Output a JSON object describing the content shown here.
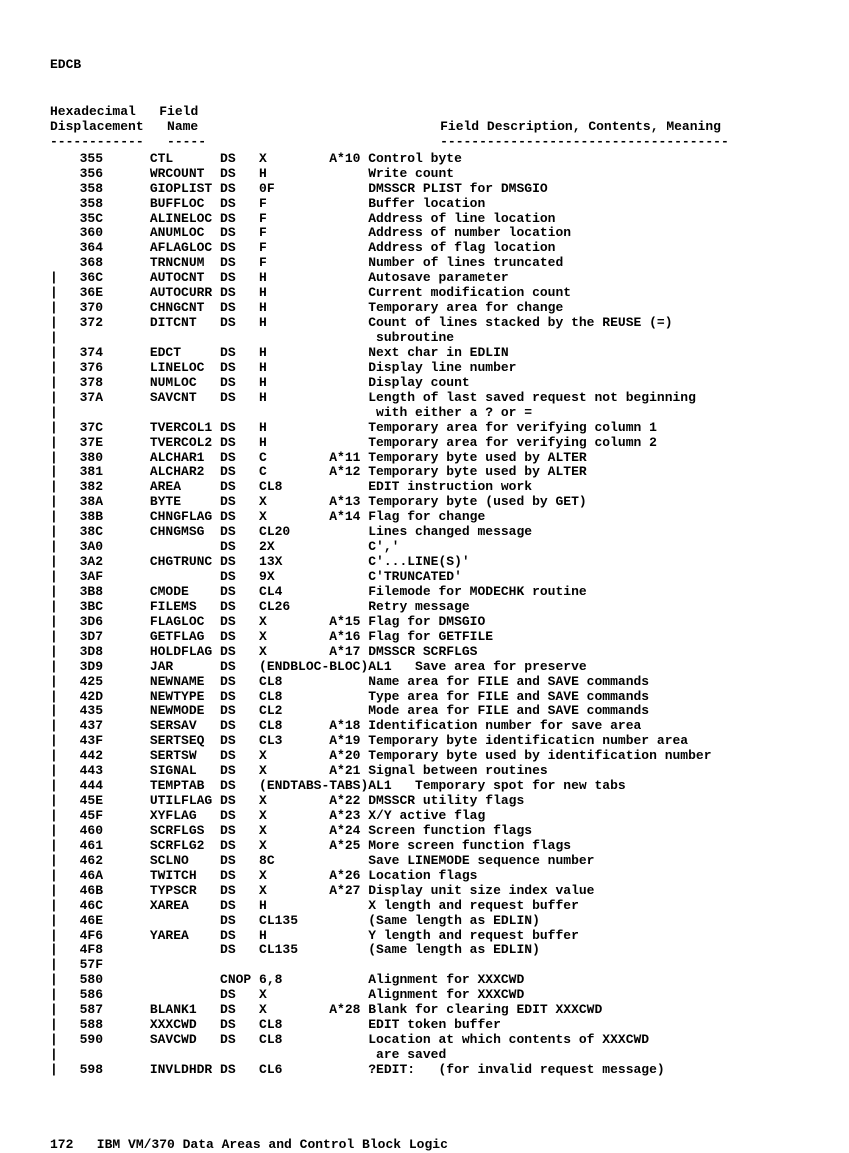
{
  "doc_title": "EDCB",
  "page_footer": "172   IBM VM/370 Data Areas and Control Block Logic",
  "col_header1": "Hexadecimal",
  "col_header2": "Field",
  "col_sub1": "Displacement",
  "col_sub2": "Name",
  "col_sub3": "Field Description, Contents, Meaning",
  "rule1": "------------",
  "rule2": "-----",
  "rule3": "-------------------------------------",
  "continuations": {
    "c1": " subroutine",
    "c2": " with either a ? or =",
    "c3": " are saved"
  },
  "rows": [
    {
      "bar": " ",
      "hex": "355",
      "name": "CTL",
      "op": "DS",
      "type": "X",
      "note": "A*10",
      "desc": "Control byte"
    },
    {
      "bar": " ",
      "hex": "356",
      "name": "WRCOUNT",
      "op": "DS",
      "type": "H",
      "note": "",
      "desc": "Write count"
    },
    {
      "bar": " ",
      "hex": "358",
      "name": "GIOPLIST",
      "op": "DS",
      "type": "0F",
      "note": "",
      "desc": "DMSSCR PLIST for DMSGIO"
    },
    {
      "bar": " ",
      "hex": "358",
      "name": "BUFFLOC",
      "op": "DS",
      "type": "F",
      "note": "",
      "desc": "Buffer location"
    },
    {
      "bar": " ",
      "hex": "35C",
      "name": "ALINELOC",
      "op": "DS",
      "type": "F",
      "note": "",
      "desc": "Address of line location"
    },
    {
      "bar": " ",
      "hex": "360",
      "name": "ANUMLOC",
      "op": "DS",
      "type": "F",
      "note": "",
      "desc": "Address of number location"
    },
    {
      "bar": " ",
      "hex": "364",
      "name": "AFLAGLOC",
      "op": "DS",
      "type": "F",
      "note": "",
      "desc": "Address of flag location"
    },
    {
      "bar": " ",
      "hex": "368",
      "name": "TRNCNUM",
      "op": "DS",
      "type": "F",
      "note": "",
      "desc": "Number of lines truncated"
    },
    {
      "bar": "|",
      "hex": "36C",
      "name": "AUTOCNT",
      "op": "DS",
      "type": "H",
      "note": "",
      "desc": "Autosave parameter"
    },
    {
      "bar": "|",
      "hex": "36E",
      "name": "AUTOCURR",
      "op": "DS",
      "type": "H",
      "note": "",
      "desc": "Current modification count"
    },
    {
      "bar": "|",
      "hex": "370",
      "name": "CHNGCNT",
      "op": "DS",
      "type": "H",
      "note": "",
      "desc": "Temporary area for change"
    },
    {
      "bar": "|",
      "hex": "372",
      "name": "DITCNT",
      "op": "DS",
      "type": "H",
      "note": "",
      "desc": "Count of lines stacked by the REUSE (=)",
      "cont": "c1"
    },
    {
      "bar": "|",
      "hex": "374",
      "name": "EDCT",
      "op": "DS",
      "type": "H",
      "note": "",
      "desc": "Next char in EDLIN"
    },
    {
      "bar": "|",
      "hex": "376",
      "name": "LINELOC",
      "op": "DS",
      "type": "H",
      "note": "",
      "desc": "Display line number"
    },
    {
      "bar": "|",
      "hex": "378",
      "name": "NUMLOC",
      "op": "DS",
      "type": "H",
      "note": "",
      "desc": "Display count"
    },
    {
      "bar": "|",
      "hex": "37A",
      "name": "SAVCNT",
      "op": "DS",
      "type": "H",
      "note": "",
      "desc": "Length of last saved request not beginning",
      "cont": "c2"
    },
    {
      "bar": "|",
      "hex": "37C",
      "name": "TVERCOL1",
      "op": "DS",
      "type": "H",
      "note": "",
      "desc": "Temporary area for verifying column 1"
    },
    {
      "bar": "|",
      "hex": "37E",
      "name": "TVERCOL2",
      "op": "DS",
      "type": "H",
      "note": "",
      "desc": "Temporary area for verifying column 2"
    },
    {
      "bar": "|",
      "hex": "380",
      "name": "ALCHAR1",
      "op": "DS",
      "type": "C",
      "note": "A*11",
      "desc": "Temporary byte used by ALTER"
    },
    {
      "bar": "|",
      "hex": "381",
      "name": "ALCHAR2",
      "op": "DS",
      "type": "C",
      "note": "A*12",
      "desc": "Temporary byte used by ALTER"
    },
    {
      "bar": "|",
      "hex": "382",
      "name": "AREA",
      "op": "DS",
      "type": "CL8",
      "note": "",
      "desc": "EDIT instruction work"
    },
    {
      "bar": "|",
      "hex": "38A",
      "name": "BYTE",
      "op": "DS",
      "type": "X",
      "note": "A*13",
      "desc": "Temporary byte (used by GET)"
    },
    {
      "bar": "|",
      "hex": "38B",
      "name": "CHNGFLAG",
      "op": "DS",
      "type": "X",
      "note": "A*14",
      "desc": "Flag for change"
    },
    {
      "bar": "|",
      "hex": "38C",
      "name": "CHNGMSG",
      "op": "DS",
      "type": "CL20",
      "note": "",
      "desc": "Lines changed message"
    },
    {
      "bar": "|",
      "hex": "3A0",
      "name": "",
      "op": "DS",
      "type": "2X",
      "note": "",
      "desc": "C','"
    },
    {
      "bar": "|",
      "hex": "3A2",
      "name": "CHGTRUNC",
      "op": "DS",
      "type": "13X",
      "note": "",
      "desc": "C'...LINE(S)'"
    },
    {
      "bar": "|",
      "hex": "3AF",
      "name": "",
      "op": "DS",
      "type": "9X",
      "note": "",
      "desc": "C'TRUNCATED'"
    },
    {
      "bar": "|",
      "hex": "3B8",
      "name": "CMODE",
      "op": "DS",
      "type": "CL4",
      "note": "",
      "desc": "Filemode for MODECHK routine"
    },
    {
      "bar": "|",
      "hex": "3BC",
      "name": "FILEMS",
      "op": "DS",
      "type": "CL26",
      "note": "",
      "desc": "Retry message"
    },
    {
      "bar": "|",
      "hex": "3D6",
      "name": "FLAGLOC",
      "op": "DS",
      "type": "X",
      "note": "A*15",
      "desc": "Flag for DMSGIO"
    },
    {
      "bar": "|",
      "hex": "3D7",
      "name": "GETFLAG",
      "op": "DS",
      "type": "X",
      "note": "A*16",
      "desc": "Flag for GETFILE"
    },
    {
      "bar": "|",
      "hex": "3D8",
      "name": "HOLDFLAG",
      "op": "DS",
      "type": "X",
      "note": "A*17",
      "desc": "DMSSCR SCRFLGS"
    },
    {
      "bar": "|",
      "hex": "3D9",
      "name": "JAR",
      "op": "DS",
      "type": "(ENDBLOC-BLOC)AL1",
      "note": "",
      "desc": "Save area for preserve",
      "typewide": true
    },
    {
      "bar": "|",
      "hex": "425",
      "name": "NEWNAME",
      "op": "DS",
      "type": "CL8",
      "note": "",
      "desc": "Name area for FILE and SAVE commands"
    },
    {
      "bar": "|",
      "hex": "42D",
      "name": "NEWTYPE",
      "op": "DS",
      "type": "CL8",
      "note": "",
      "desc": "Type area for FILE and SAVE commands"
    },
    {
      "bar": "|",
      "hex": "435",
      "name": "NEWMODE",
      "op": "DS",
      "type": "CL2",
      "note": "",
      "desc": "Mode area for FILE and SAVE commands"
    },
    {
      "bar": "|",
      "hex": "437",
      "name": "SERSAV",
      "op": "DS",
      "type": "CL8",
      "note": "A*18",
      "desc": "Identification number for save area"
    },
    {
      "bar": "|",
      "hex": "43F",
      "name": "SERTSEQ",
      "op": "DS",
      "type": "CL3",
      "note": "A*19",
      "desc": "Temporary byte identificaticn number area"
    },
    {
      "bar": "|",
      "hex": "442",
      "name": "SERTSW",
      "op": "DS",
      "type": "X",
      "note": "A*20",
      "desc": "Temporary byte used by identification number"
    },
    {
      "bar": "|",
      "hex": "443",
      "name": "SIGNAL",
      "op": "DS",
      "type": "X",
      "note": "A*21",
      "desc": "Signal between routines"
    },
    {
      "bar": "|",
      "hex": "444",
      "name": "TEMPTAB",
      "op": "DS",
      "type": "(ENDTABS-TABS)AL1",
      "note": "",
      "desc": "Temporary spot for new tabs",
      "typewide": true
    },
    {
      "bar": "|",
      "hex": "45E",
      "name": "UTILFLAG",
      "op": "DS",
      "type": "X",
      "note": "A*22",
      "desc": "DMSSCR utility flags"
    },
    {
      "bar": "|",
      "hex": "45F",
      "name": "XYFLAG",
      "op": "DS",
      "type": "X",
      "note": "A*23",
      "desc": "X/Y active flag"
    },
    {
      "bar": "|",
      "hex": "460",
      "name": "SCRFLGS",
      "op": "DS",
      "type": "X",
      "note": "A*24",
      "desc": "Screen function flags"
    },
    {
      "bar": "|",
      "hex": "461",
      "name": "SCRFLG2",
      "op": "DS",
      "type": "X",
      "note": "A*25",
      "desc": "More screen function flags"
    },
    {
      "bar": "|",
      "hex": "462",
      "name": "SCLNO",
      "op": "DS",
      "type": "8C",
      "note": "",
      "desc": "Save LINEMODE sequence number"
    },
    {
      "bar": "|",
      "hex": "46A",
      "name": "TWITCH",
      "op": "DS",
      "type": "X",
      "note": "A*26",
      "desc": "Location flags"
    },
    {
      "bar": "|",
      "hex": "46B",
      "name": "TYPSCR",
      "op": "DS",
      "type": "X",
      "note": "A*27",
      "desc": "Display unit size index value"
    },
    {
      "bar": "|",
      "hex": "46C",
      "name": "XAREA",
      "op": "DS",
      "type": "H",
      "note": "",
      "desc": "X length and request buffer"
    },
    {
      "bar": "|",
      "hex": "46E",
      "name": "",
      "op": "DS",
      "type": "CL135",
      "note": "",
      "desc": "(Same length as EDLIN)"
    },
    {
      "bar": "|",
      "hex": "4F6",
      "name": "YAREA",
      "op": "DS",
      "type": "H",
      "note": "",
      "desc": "Y length and request buffer"
    },
    {
      "bar": "|",
      "hex": "4F8",
      "name": "",
      "op": "DS",
      "type": "CL135",
      "note": "",
      "desc": "(Same length as EDLIN)"
    },
    {
      "bar": "|",
      "hex": "57F",
      "name": "",
      "op": "",
      "type": "",
      "note": "",
      "desc": ""
    },
    {
      "bar": "|",
      "hex": "580",
      "name": "",
      "op": "CNOP",
      "type": "6,8",
      "note": "",
      "desc": "Alignment for XXXCWD"
    },
    {
      "bar": "|",
      "hex": "586",
      "name": "",
      "op": "DS",
      "type": "X",
      "note": "",
      "desc": "Alignment for XXXCWD"
    },
    {
      "bar": "|",
      "hex": "587",
      "name": "BLANK1",
      "op": "DS",
      "type": "X",
      "note": "A*28",
      "desc": "Blank for clearing EDIT XXXCWD"
    },
    {
      "bar": "|",
      "hex": "588",
      "name": "XXXCWD",
      "op": "DS",
      "type": "CL8",
      "note": "",
      "desc": "EDIT token buffer"
    },
    {
      "bar": "|",
      "hex": "590",
      "name": "SAVCWD",
      "op": "DS",
      "type": "CL8",
      "note": "",
      "desc": "Location at which contents of XXXCWD",
      "cont": "c3"
    },
    {
      "bar": "|",
      "hex": "598",
      "name": "INVLDHDR",
      "op": "DS",
      "type": "CL6",
      "note": "",
      "desc": "?EDIT:   (for invalid request message)"
    }
  ]
}
